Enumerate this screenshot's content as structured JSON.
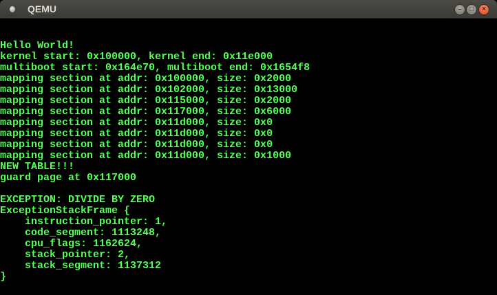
{
  "window": {
    "title": "QEMU",
    "controls": {
      "minimize": "–",
      "maximize": "□",
      "close": "×"
    }
  },
  "console": {
    "text_color": "#55ff55",
    "lines": [
      "Hello World!",
      "kernel start: 0x100000, kernel end: 0x11e000",
      "multiboot start: 0x164e70, multiboot end: 0x1654f8",
      "mapping section at addr: 0x100000, size: 0x2000",
      "mapping section at addr: 0x102000, size: 0x13000",
      "mapping section at addr: 0x115000, size: 0x2000",
      "mapping section at addr: 0x117000, size: 0x6000",
      "mapping section at addr: 0x11d000, size: 0x0",
      "mapping section at addr: 0x11d000, size: 0x0",
      "mapping section at addr: 0x11d000, size: 0x0",
      "mapping section at addr: 0x11d000, size: 0x1000",
      "NEW TABLE!!!",
      "guard page at 0x117000",
      "",
      "EXCEPTION: DIVIDE BY ZERO",
      "ExceptionStackFrame {",
      "    instruction_pointer: 1,",
      "    code_segment: 1113248,",
      "    cpu_flags: 1162624,",
      "    stack_pointer: 2,",
      "    stack_segment: 1137312",
      "}"
    ]
  }
}
